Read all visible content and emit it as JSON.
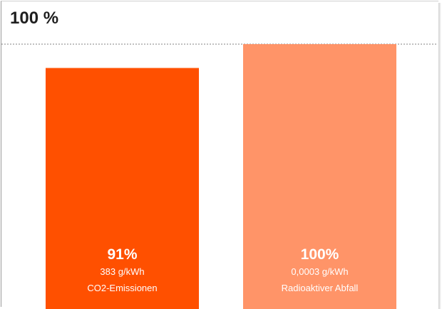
{
  "chart_data": {
    "type": "bar",
    "title": "100 %",
    "reference_line": 100,
    "ylim": [
      0,
      100
    ],
    "categories": [
      "CO2-Emissionen",
      "Radioaktiver Abfall"
    ],
    "values": [
      91,
      100
    ],
    "value_labels": [
      "91%",
      "100%"
    ],
    "sub_labels": [
      "383 g/kWh",
      "0,0003 g/kWh"
    ],
    "colors": [
      "#ff5000",
      "#ff9468"
    ],
    "grid": false
  }
}
